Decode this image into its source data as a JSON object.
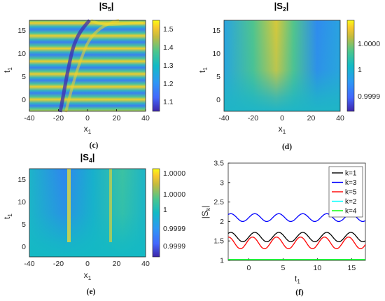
{
  "figure": {
    "panels": [
      {
        "id": "c",
        "title_main": "|S",
        "title_sub": "5",
        "title_end": "|",
        "caption": "(c)",
        "xlabel_main": "x",
        "xlabel_sub": "1",
        "ylabel_main": "t",
        "ylabel_sub": "1",
        "xticks": [
          "-40",
          "-20",
          "0",
          "20",
          "40"
        ],
        "yticks": [
          "0",
          "5",
          "10",
          "15"
        ],
        "colorbar_ticks": [
          "1.5",
          "1.4",
          "1.3",
          "1.2",
          "1.1"
        ]
      },
      {
        "id": "d",
        "title_main": "|S",
        "title_sub": "2",
        "title_end": "|",
        "caption": "(d)",
        "xlabel_main": "x",
        "xlabel_sub": "1",
        "ylabel_main": "t",
        "ylabel_sub": "1",
        "xticks": [
          "-40",
          "-20",
          "0",
          "20",
          "40"
        ],
        "yticks": [
          "0",
          "5",
          "10",
          "15"
        ],
        "colorbar_ticks": [
          "1.0000",
          "1",
          "0.9999"
        ]
      },
      {
        "id": "e",
        "title_main": "|S",
        "title_sub": "4",
        "title_end": "|",
        "caption": "(e)",
        "xlabel_main": "x",
        "xlabel_sub": "1",
        "ylabel_main": "t",
        "ylabel_sub": "1",
        "xticks": [
          "-40",
          "-20",
          "0",
          "20",
          "40"
        ],
        "yticks": [
          "0",
          "5",
          "10",
          "15"
        ],
        "colorbar_ticks": [
          "1.0000",
          "1.0000",
          "1",
          "0.9999",
          "0.9999"
        ]
      },
      {
        "id": "f",
        "caption": "(f)",
        "xlabel_main": "t",
        "xlabel_sub": "1",
        "ylabel_main": "|S",
        "ylabel_sub": "k",
        "ylabel_end": "|",
        "xticks": [
          "0",
          "5",
          "10",
          "15"
        ],
        "yticks": [
          "1",
          "1.5",
          "2",
          "2.5",
          "3",
          "3.5"
        ]
      }
    ],
    "colors": {
      "low": "#3e26a8",
      "mid": "#1fa2d6",
      "high": "#f9fb14"
    }
  },
  "chart_data": [
    {
      "type": "heatmap",
      "panel": "c",
      "title": "|S5|",
      "xlabel": "x1",
      "ylabel": "t1",
      "xlim": [
        -40,
        40
      ],
      "ylim": [
        -3,
        17
      ],
      "clim": [
        1.03,
        1.55
      ]
    },
    {
      "type": "heatmap",
      "panel": "d",
      "title": "|S2|",
      "xlabel": "x1",
      "ylabel": "t1",
      "xlim": [
        -40,
        40
      ],
      "ylim": [
        -3,
        17
      ]
    },
    {
      "type": "heatmap",
      "panel": "e",
      "title": "|S4|",
      "xlabel": "x1",
      "ylabel": "t1",
      "xlim": [
        -40,
        40
      ],
      "ylim": [
        -3,
        17
      ]
    },
    {
      "type": "line",
      "panel": "f",
      "xlabel": "t1",
      "ylabel": "|Sk|",
      "xlim": [
        -3,
        17
      ],
      "ylim": [
        1,
        3.5
      ],
      "legend_position": "top-right",
      "series": [
        {
          "name": "k=1",
          "color": "#000000",
          "mean": 1.6,
          "amplitude": 0.12,
          "period": 3.5
        },
        {
          "name": "k=3",
          "color": "#0000ff",
          "mean": 2.1,
          "amplitude": 0.1,
          "period": 3.5
        },
        {
          "name": "k=5",
          "color": "#ff0000",
          "mean": 1.45,
          "amplitude": 0.15,
          "period": 3.5
        },
        {
          "name": "k=2",
          "color": "#00ffff",
          "mean": 1.02,
          "amplitude": 0,
          "period": 3.5
        },
        {
          "name": "k=4",
          "color": "#00ff00",
          "mean": 1.02,
          "amplitude": 0,
          "period": 3.5
        }
      ]
    }
  ]
}
